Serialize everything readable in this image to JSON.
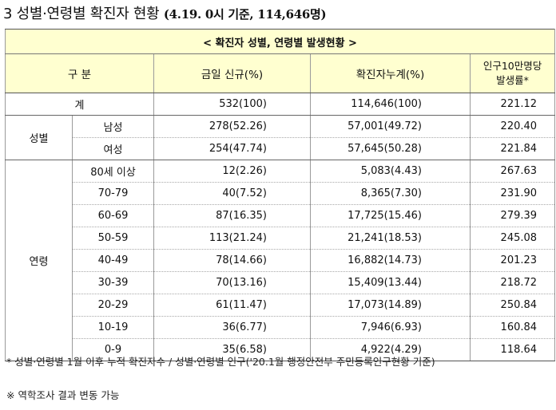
{
  "heading": {
    "prefix": "3 성별·연령별 확진자 현황 ",
    "basis": "(4.19. 0시 기준, 114,646명)"
  },
  "table": {
    "title": "< 확진자 성별, 연령별 발생현황 >",
    "headers": {
      "category": "구 분",
      "new_today": "금일 신규(%)",
      "cumulative": "확진자누계(%)",
      "rate_line1": "인구10만명당",
      "rate_line2": "발생률*"
    },
    "total": {
      "label": "계",
      "new_today": "532(100)",
      "cumulative": "114,646(100)",
      "rate": "221.12"
    },
    "sex_group": "성별",
    "sex_rows": [
      {
        "label": "남성",
        "new_today": "278(52.26)",
        "cumulative": "57,001(49.72)",
        "rate": "220.40"
      },
      {
        "label": "여성",
        "new_today": "254(47.74)",
        "cumulative": "57,645(50.28)",
        "rate": "221.84"
      }
    ],
    "age_group": "연령",
    "age_rows": [
      {
        "label": "80세 이상",
        "new_today": "12(2.26)",
        "cumulative": "5,083(4.43)",
        "rate": "267.63"
      },
      {
        "label": "70-79",
        "new_today": "40(7.52)",
        "cumulative": "8,365(7.30)",
        "rate": "231.90"
      },
      {
        "label": "60-69",
        "new_today": "87(16.35)",
        "cumulative": "17,725(15.46)",
        "rate": "279.39"
      },
      {
        "label": "50-59",
        "new_today": "113(21.24)",
        "cumulative": "21,241(18.53)",
        "rate": "245.08"
      },
      {
        "label": "40-49",
        "new_today": "78(14.66)",
        "cumulative": "16,882(14.73)",
        "rate": "201.23"
      },
      {
        "label": "30-39",
        "new_today": "70(13.16)",
        "cumulative": "15,409(13.44)",
        "rate": "218.72"
      },
      {
        "label": "20-29",
        "new_today": "61(11.47)",
        "cumulative": "17,073(14.89)",
        "rate": "250.84"
      },
      {
        "label": "10-19",
        "new_today": "36(6.77)",
        "cumulative": "7,946(6.93)",
        "rate": "160.84"
      },
      {
        "label": "0-9",
        "new_today": "35(6.58)",
        "cumulative": "4,922(4.29)",
        "rate": "118.64"
      }
    ]
  },
  "footnotes": {
    "note1": "* 성별·연령별 1월 이후 누적 확진자수 / 성별·연령별 인구('20.1월 행정안전부 주민등록인구현황 기준)",
    "note2": "※ 역학조사 결과 변동 가능"
  }
}
